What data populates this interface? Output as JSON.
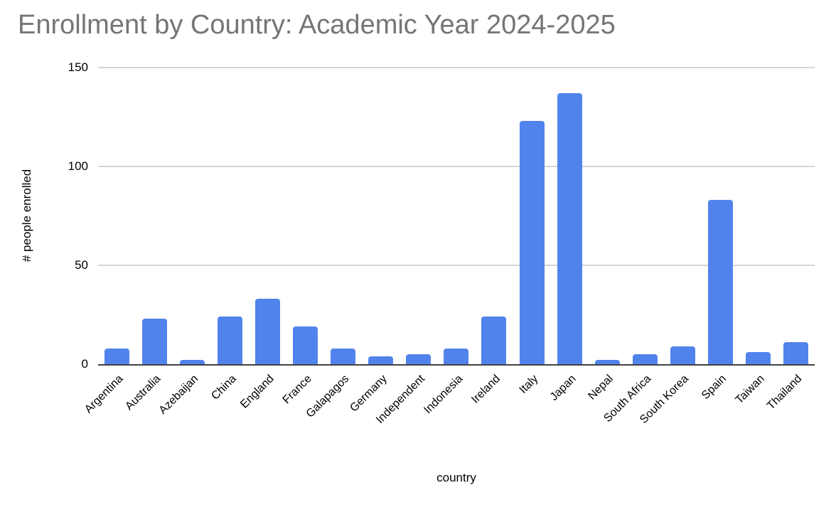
{
  "page": {
    "background_color": "#ffffff"
  },
  "chart_data": {
    "type": "bar",
    "title": "Enrollment by Country: Academic Year 2024-2025",
    "xlabel": "country",
    "ylabel": "# people enrolled",
    "categories": [
      "Argentina",
      "Australia",
      "Azebaijan",
      "China",
      "England",
      "France",
      "Galapagos",
      "Germany",
      "Independent",
      "Indonesia",
      "Ireland",
      "Italy",
      "Japan",
      "Nepal",
      "South Africa",
      "South Korea",
      "Spain",
      "Taiwan",
      "Thailand"
    ],
    "values": [
      8,
      23,
      2,
      24,
      33,
      19,
      8,
      4,
      5,
      8,
      24,
      123,
      137,
      2,
      5,
      9,
      83,
      6,
      11
    ],
    "ylim": [
      0,
      150
    ],
    "yticks": [
      0,
      50,
      100,
      150
    ],
    "grid": true,
    "legend": false,
    "colors": {
      "bar": "#5183EC",
      "title_text": "#757575",
      "axis_text": "#000000",
      "gridline": "#d5d5d5",
      "axis_line": "#424242"
    }
  }
}
